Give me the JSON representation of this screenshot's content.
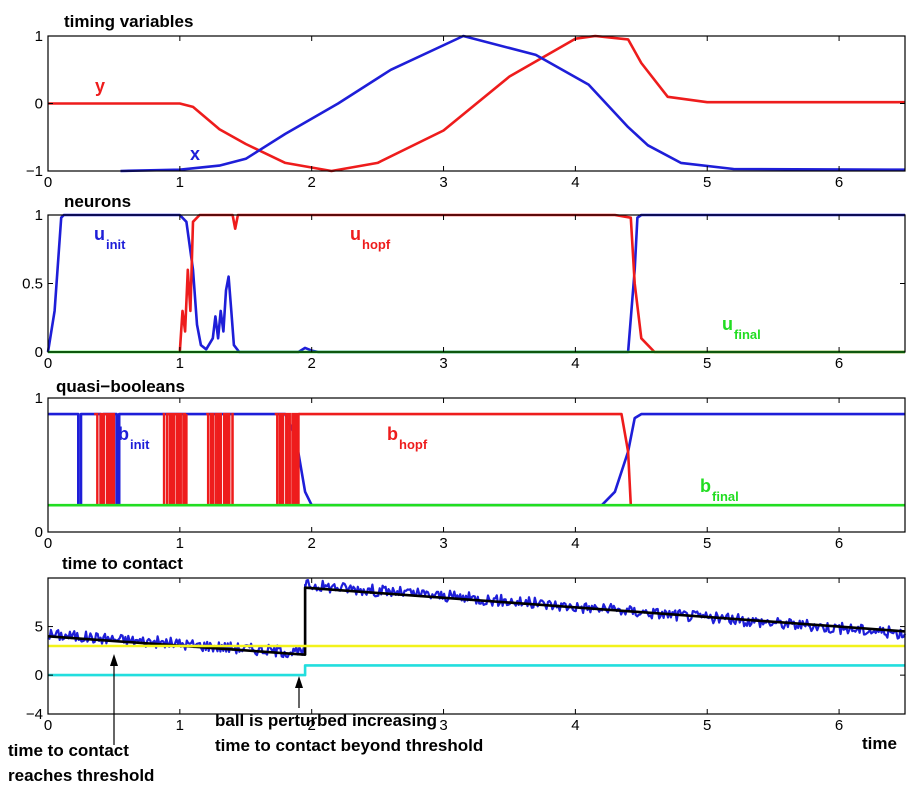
{
  "colors": {
    "red": "#ee1c1c",
    "blue": "#1e1ed8",
    "green": "#22dd22",
    "yellow": "#f2f21a",
    "cyan": "#22dede",
    "black": "#000000"
  },
  "chart_data": [
    {
      "type": "line",
      "title": "timing variables",
      "xlim": [
        0,
        6.5
      ],
      "ylim": [
        -1,
        1
      ],
      "xticks": [
        "0",
        "1",
        "2",
        "3",
        "4",
        "5",
        "6"
      ],
      "yticks": [
        "1",
        "0",
        "−1"
      ],
      "series": [
        {
          "name": "y",
          "color": "red",
          "x": [
            0,
            1.0,
            1.1,
            1.3,
            1.5,
            1.8,
            2.15,
            2.5,
            3.0,
            3.5,
            4.0,
            4.15,
            4.4,
            4.5,
            4.7,
            5.0,
            6.5
          ],
          "y": [
            0,
            0,
            -0.05,
            -0.38,
            -0.6,
            -0.88,
            -1.0,
            -0.88,
            -0.4,
            0.4,
            0.96,
            1.0,
            0.95,
            0.6,
            0.1,
            0.02,
            0.02
          ]
        },
        {
          "name": "x",
          "color": "blue",
          "x": [
            0.55,
            1.0,
            1.3,
            1.5,
            1.8,
            2.2,
            2.6,
            3.15,
            3.7,
            4.1,
            4.4,
            4.55,
            4.8,
            5.2,
            6.5
          ],
          "y": [
            -1.0,
            -0.98,
            -0.92,
            -0.82,
            -0.45,
            0.0,
            0.5,
            1.0,
            0.72,
            0.28,
            -0.35,
            -0.62,
            -0.88,
            -0.97,
            -0.98
          ]
        }
      ]
    },
    {
      "type": "line",
      "title": "neurons",
      "xlim": [
        0,
        6.5
      ],
      "ylim": [
        0,
        1
      ],
      "xticks": [
        "0",
        "1",
        "2",
        "3",
        "4",
        "5",
        "6"
      ],
      "yticks": [
        "1",
        "0.5",
        "0"
      ],
      "series": [
        {
          "name": "u",
          "sub": "init",
          "color": "blue",
          "x": [
            0,
            0.05,
            0.1,
            0.12,
            1.0,
            1.05,
            1.1,
            1.13,
            1.16,
            1.2,
            1.25,
            1.27,
            1.29,
            1.31,
            1.33,
            1.35,
            1.37,
            1.39,
            1.41,
            1.45,
            1.9,
            1.95,
            2.0,
            2.05,
            4.4,
            4.45,
            4.47,
            4.5,
            6.5
          ],
          "y": [
            0,
            0.3,
            0.98,
            1.0,
            1.0,
            0.95,
            0.6,
            0.2,
            0.05,
            0.02,
            0.1,
            0.26,
            0.1,
            0.3,
            0.15,
            0.45,
            0.55,
            0.3,
            0.05,
            0.0,
            0.0,
            0.03,
            0.01,
            0.0,
            0.0,
            0.6,
            0.98,
            1.0,
            1.0
          ]
        },
        {
          "name": "u",
          "sub": "hopf",
          "color": "red",
          "x": [
            1.0,
            1.02,
            1.04,
            1.06,
            1.08,
            1.1,
            1.15,
            1.4,
            1.42,
            1.44,
            4.3,
            4.42,
            4.45,
            4.5,
            4.6,
            6.5
          ],
          "y": [
            0.0,
            0.3,
            0.15,
            0.6,
            0.3,
            0.95,
            1.0,
            1.0,
            0.9,
            1.0,
            1.0,
            0.98,
            0.5,
            0.1,
            0.0,
            0.0
          ]
        },
        {
          "name": "u",
          "sub": "final",
          "color": "green",
          "x": [
            0,
            6.5
          ],
          "y": [
            0.0,
            0.0
          ]
        }
      ]
    },
    {
      "type": "line",
      "title": "quasi−booleans",
      "xlim": [
        0,
        6.5
      ],
      "ylim": [
        0,
        1
      ],
      "xticks": [
        "0",
        "1",
        "2",
        "3",
        "4",
        "5",
        "6"
      ],
      "yticks": [
        "1",
        "0"
      ],
      "series": [
        {
          "name": "b",
          "sub": "init",
          "color": "blue",
          "x": [
            0,
            0.23,
            0.23,
            0.25,
            0.25,
            0.4,
            0.4,
            0.42,
            0.42,
            0.52,
            0.52,
            0.54,
            0.54,
            1.8,
            1.88,
            1.95,
            2.0,
            4.2,
            4.3,
            4.4,
            4.45,
            4.5,
            6.5
          ],
          "y": [
            0.88,
            0.88,
            0.2,
            0.2,
            0.88,
            0.88,
            0.2,
            0.2,
            0.88,
            0.88,
            0.2,
            0.2,
            0.88,
            0.88,
            0.7,
            0.3,
            0.2,
            0.2,
            0.3,
            0.6,
            0.85,
            0.88,
            0.88
          ]
        },
        {
          "name": "b",
          "sub": "hopf",
          "color": "red",
          "bursts": [
            [
              0.35,
              0.5
            ],
            [
              0.87,
              1.05
            ],
            [
              1.2,
              1.4
            ],
            [
              1.72,
              1.9
            ]
          ],
          "x": [
            1.9,
            4.35,
            4.4,
            4.42
          ],
          "y": [
            0.88,
            0.88,
            0.6,
            0.2
          ]
        },
        {
          "name": "b",
          "sub": "final",
          "color": "green",
          "x": [
            0,
            6.5
          ],
          "y": [
            0.2,
            0.2
          ]
        }
      ]
    },
    {
      "type": "line",
      "title": "time to contact",
      "xlim": [
        0,
        6.5
      ],
      "ylim": [
        -4,
        10
      ],
      "xticks": [
        "0",
        "1",
        "2",
        "3",
        "4",
        "5",
        "6"
      ],
      "yticks": [
        "5",
        "0",
        "−4"
      ],
      "xlabel": "time",
      "series": [
        {
          "color": "blue",
          "noisy": true,
          "x": [
            0,
            1.95,
            1.95,
            6.5
          ],
          "y": [
            4.2,
            2.3,
            9.3,
            4.3
          ]
        },
        {
          "color": "black",
          "x": [
            0,
            1.95,
            1.95,
            6.5
          ],
          "y": [
            4.0,
            2.1,
            9.0,
            4.5
          ]
        },
        {
          "color": "yellow",
          "x": [
            0,
            6.5
          ],
          "y": [
            3.0,
            3.0
          ]
        },
        {
          "color": "cyan",
          "x": [
            0,
            1.95,
            1.95,
            6.5
          ],
          "y": [
            0.0,
            0.0,
            1.0,
            1.0
          ]
        }
      ],
      "annotations": [
        {
          "lines": [
            "time to contact",
            "reaches  threshold"
          ],
          "arrow_x": 0.5
        },
        {
          "lines": [
            "ball is perturbed increasing",
            "time to contact beyond threshold"
          ],
          "arrow_x": 1.95
        }
      ]
    }
  ]
}
